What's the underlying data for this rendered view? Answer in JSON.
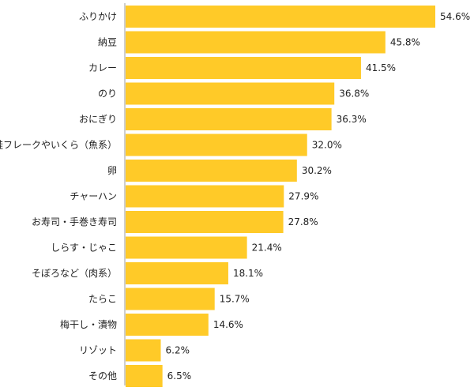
{
  "chart_data": {
    "type": "bar",
    "orientation": "horizontal",
    "categories": [
      "ふりかけ",
      "納豆",
      "カレー",
      "のり",
      "おにぎり",
      "鮭フレークやいくら（魚系）",
      "卵",
      "チャーハン",
      "お寿司・手巻き寿司",
      "しらす・じゃこ",
      "そぼろなど（肉系）",
      "たらこ",
      "梅干し・漬物",
      "リゾット",
      "その他"
    ],
    "values": [
      54.6,
      45.8,
      41.5,
      36.8,
      36.3,
      32.0,
      30.2,
      27.9,
      27.8,
      21.4,
      18.1,
      15.7,
      14.6,
      6.2,
      6.5
    ],
    "value_labels": [
      "54.6%",
      "45.8%",
      "41.5%",
      "36.8%",
      "36.3%",
      "32.0%",
      "30.2%",
      "27.9%",
      "27.8%",
      "21.4%",
      "18.1%",
      "15.7%",
      "14.6%",
      "6.2%",
      "6.5%"
    ],
    "xlim": [
      0,
      54.6
    ],
    "grid": false,
    "legend": "none",
    "bar_color": "#FFCA28",
    "axis_color": "#9E9E9E",
    "text_color": "#222222",
    "title": "",
    "xlabel": "",
    "ylabel": ""
  }
}
